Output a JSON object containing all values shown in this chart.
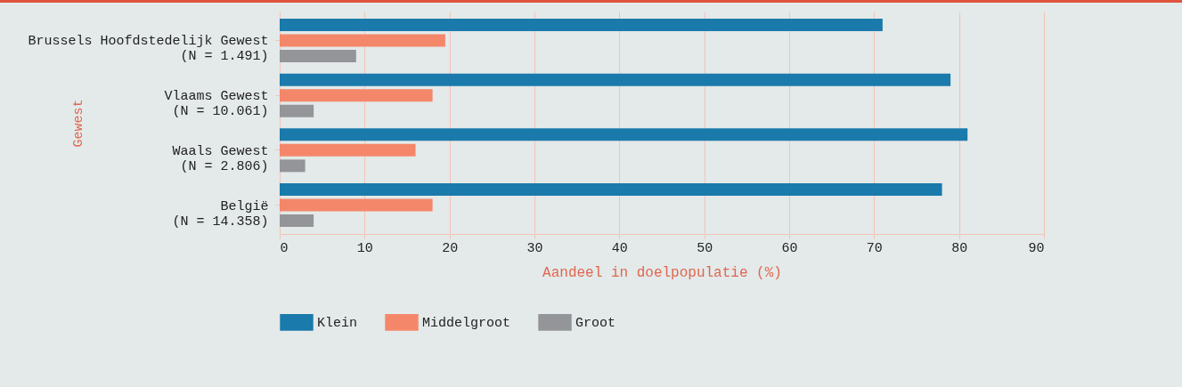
{
  "chart_data": {
    "type": "bar",
    "orientation": "horizontal",
    "xlabel": "Aandeel in doelpopulatie (%)",
    "ylabel": "Gewest",
    "categories": [
      "Brussels Hoofdstedelijk Gewest\n(N = 1.491)",
      "Vlaams Gewest\n(N = 10.061)",
      "Waals Gewest\n(N = 2.806)",
      "België\n(N = 14.358)"
    ],
    "series": [
      {
        "name": "Klein",
        "color": "#1a7aab",
        "values": [
          71,
          79,
          81,
          78
        ]
      },
      {
        "name": "Middelgroot",
        "color": "#f4876a",
        "values": [
          19.5,
          18,
          16,
          18
        ]
      },
      {
        "name": "Groot",
        "color": "#939598",
        "values": [
          9,
          4,
          3,
          4
        ]
      }
    ],
    "xlim": [
      0,
      90
    ],
    "xticks": [
      0,
      10,
      20,
      30,
      40,
      50,
      60,
      70,
      80,
      90
    ],
    "grid": "x",
    "legend": "bottom"
  }
}
